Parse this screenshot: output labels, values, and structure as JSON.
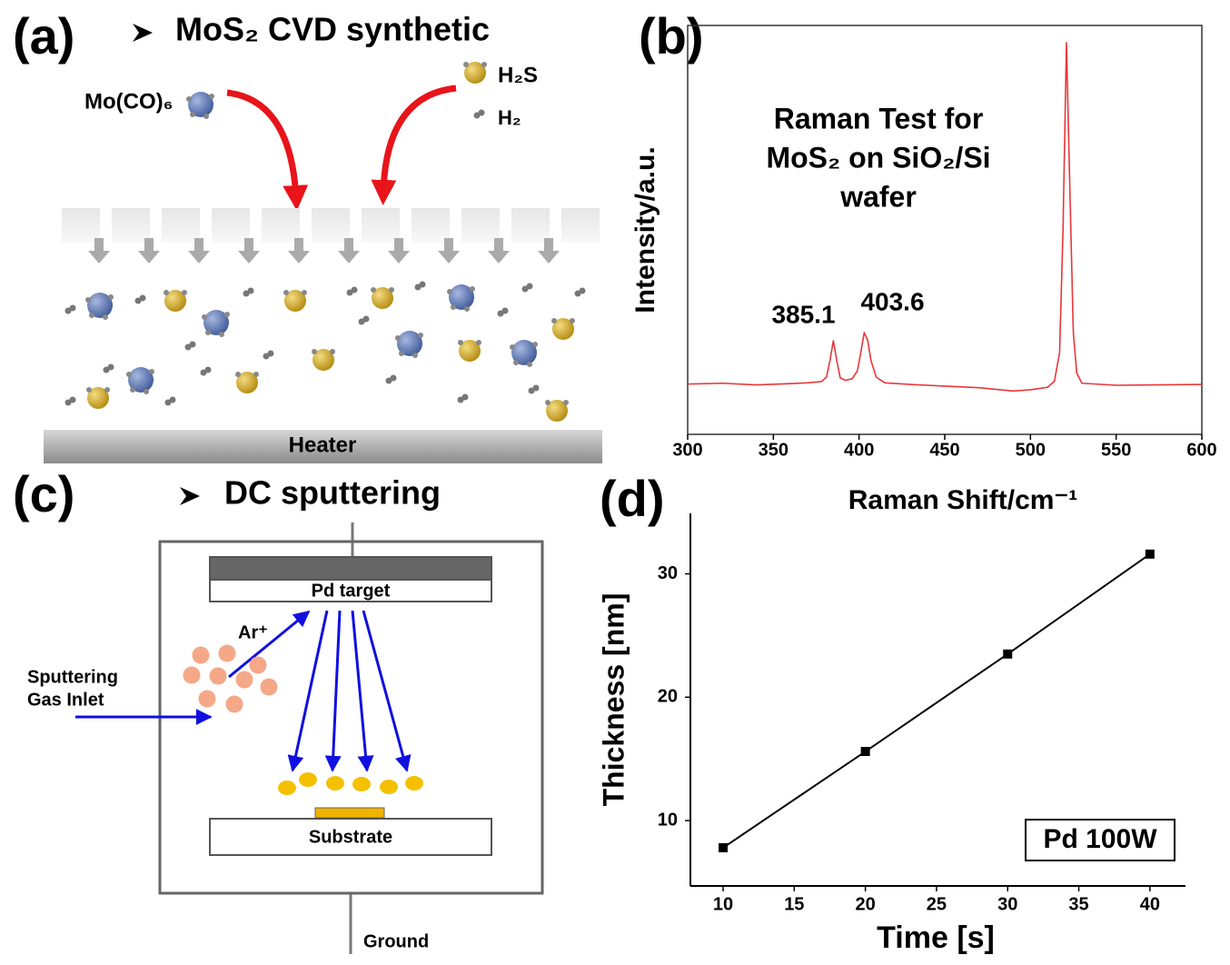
{
  "panel_a": {
    "label": "(a)",
    "title": "MoS₂ CVD synthetic",
    "precursor": "Mo(CO)₆",
    "gas1": "H₂S",
    "gas2": "H₂",
    "heater": "Heater"
  },
  "panel_c": {
    "label": "(c)",
    "title": "DC sputtering",
    "target": "Pd target",
    "ion": "Ar⁺",
    "inlet": [
      "Sputtering",
      "Gas Inlet"
    ],
    "substrate": "Substrate",
    "ground": "Ground"
  },
  "chart_data": [
    {
      "type": "line",
      "panel": "(b)",
      "title": [
        "Raman Test for",
        "MoS₂ on SiO₂/Si",
        "wafer"
      ],
      "xlabel": "Raman Shift/cm⁻¹",
      "ylabel": "Intensity/a.u.",
      "x": [
        300,
        320,
        340,
        360,
        370,
        378,
        381,
        383,
        385,
        387,
        389,
        392,
        396,
        399,
        401,
        403,
        405,
        407,
        410,
        415,
        430,
        450,
        470,
        490,
        500,
        510,
        514,
        517,
        519,
        521,
        523,
        525,
        527,
        530,
        550,
        575,
        600
      ],
      "series": [
        {
          "color": "#e8373a",
          "values": [
            12.3,
            12.5,
            12.1,
            12.4,
            12.6,
            12.9,
            14,
            18,
            22.9,
            18,
            13.8,
            13.2,
            13.6,
            15.5,
            20,
            24.9,
            23,
            18,
            14,
            12.6,
            12.2,
            11.8,
            11.4,
            10.6,
            10.9,
            11.5,
            13,
            20,
            50,
            95.8,
            60,
            25,
            15,
            12.5,
            12,
            12.1,
            12.2
          ]
        }
      ],
      "annotations": [
        385.1,
        403.6
      ],
      "xlim": [
        300,
        600
      ],
      "xticks": [
        300,
        350,
        400,
        450,
        500,
        550,
        600
      ],
      "ylim": [
        0,
        100
      ]
    },
    {
      "type": "line",
      "panel": "(d)",
      "xlabel": "Time [s]",
      "ylabel": "Thickness [nm]",
      "legend": "Pd 100W",
      "x": [
        10,
        20,
        30,
        40
      ],
      "series": [
        {
          "color": "#000000",
          "marker": "square",
          "values": [
            7.8,
            15.6,
            23.5,
            31.6
          ]
        }
      ],
      "xlim": [
        7.7,
        42.5
      ],
      "xticks": [
        10,
        15,
        20,
        25,
        30,
        35,
        40
      ],
      "ylim": [
        4.7,
        34.9
      ],
      "yticks": [
        10,
        20,
        30
      ]
    }
  ]
}
